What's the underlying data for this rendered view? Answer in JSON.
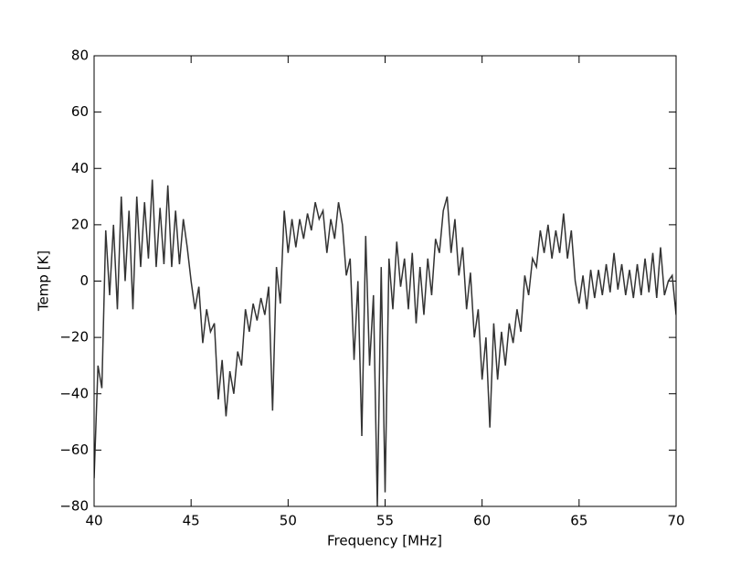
{
  "chart_data": {
    "type": "line",
    "x_label": "Frequency [MHz]",
    "y_label": "Temp [K]",
    "xlim": [
      40,
      70
    ],
    "xticks": [
      40,
      45,
      50,
      55,
      60,
      65,
      70
    ],
    "ylim": [
      -80,
      80
    ],
    "yticks": [
      {
        "value": -80,
        "label": "−80"
      },
      {
        "value": -60,
        "label": "−60"
      },
      {
        "value": -40,
        "label": "−40"
      },
      {
        "value": -20,
        "label": "−20"
      },
      0,
      20,
      40,
      60,
      80
    ],
    "x": [
      40.0,
      40.2,
      40.4,
      40.6,
      40.8,
      41.0,
      41.2,
      41.4,
      41.6,
      41.8,
      42.0,
      42.2,
      42.4,
      42.6,
      42.8,
      43.0,
      43.2,
      43.4,
      43.6,
      43.8,
      44.0,
      44.2,
      44.4,
      44.6,
      44.8,
      45.0,
      45.2,
      45.4,
      45.6,
      45.8,
      46.0,
      46.2,
      46.4,
      46.6,
      46.8,
      47.0,
      47.2,
      47.4,
      47.6,
      47.8,
      48.0,
      48.2,
      48.4,
      48.6,
      48.8,
      49.0,
      49.2,
      49.4,
      49.6,
      49.8,
      50.0,
      50.2,
      50.4,
      50.6,
      50.8,
      51.0,
      51.2,
      51.4,
      51.6,
      51.8,
      52.0,
      52.2,
      52.4,
      52.6,
      52.8,
      53.0,
      53.2,
      53.4,
      53.6,
      53.8,
      54.0,
      54.2,
      54.4,
      54.6,
      54.8,
      55.0,
      55.2,
      55.4,
      55.6,
      55.8,
      56.0,
      56.2,
      56.4,
      56.6,
      56.8,
      57.0,
      57.2,
      57.4,
      57.6,
      57.8,
      58.0,
      58.2,
      58.4,
      58.6,
      58.8,
      59.0,
      59.2,
      59.4,
      59.6,
      59.8,
      60.0,
      60.2,
      60.4,
      60.6,
      60.8,
      61.0,
      61.2,
      61.4,
      61.6,
      61.8,
      62.0,
      62.2,
      62.4,
      62.6,
      62.8,
      63.0,
      63.2,
      63.4,
      63.6,
      63.8,
      64.0,
      64.2,
      64.4,
      64.6,
      64.8,
      65.0,
      65.2,
      65.4,
      65.6,
      65.8,
      66.0,
      66.2,
      66.4,
      66.6,
      66.8,
      67.0,
      67.2,
      67.4,
      67.6,
      67.8,
      68.0,
      68.2,
      68.4,
      68.6,
      68.8,
      69.0,
      69.2,
      69.4,
      69.6,
      69.8,
      70.0
    ],
    "series": [
      {
        "color": "#333333",
        "values": [
          -70,
          -30,
          -38,
          18,
          -5,
          20,
          -10,
          30,
          0,
          25,
          -10,
          30,
          5,
          28,
          8,
          36,
          5,
          26,
          6,
          34,
          5,
          25,
          6,
          22,
          12,
          0,
          -10,
          -2,
          -22,
          -10,
          -18,
          -15,
          -42,
          -28,
          -48,
          -32,
          -40,
          -25,
          -30,
          -10,
          -18,
          -8,
          -14,
          -6,
          -12,
          -2,
          -46,
          5,
          -8,
          25,
          10,
          22,
          12,
          22,
          15,
          24,
          18,
          28,
          22,
          25,
          10,
          22,
          15,
          28,
          20,
          2,
          8,
          -28,
          0,
          -55,
          16,
          -30,
          -5,
          -80,
          5,
          -75,
          8,
          -10,
          14,
          -2,
          8,
          -10,
          10,
          -15,
          5,
          -12,
          8,
          -5,
          15,
          10,
          25,
          30,
          10,
          22,
          2,
          12,
          -10,
          3,
          -20,
          -10,
          -35,
          -20,
          -52,
          -15,
          -35,
          -18,
          -30,
          -15,
          -22,
          -10,
          -18,
          2,
          -5,
          8,
          5,
          18,
          10,
          20,
          8,
          18,
          10,
          24,
          8,
          18,
          0,
          -8,
          2,
          -10,
          4,
          -6,
          4,
          -5,
          6,
          -4,
          10,
          -3,
          6,
          -5,
          4,
          -6,
          6,
          -5,
          8,
          -4,
          10,
          -6,
          12,
          -5,
          0,
          2,
          -12
        ]
      }
    ]
  }
}
